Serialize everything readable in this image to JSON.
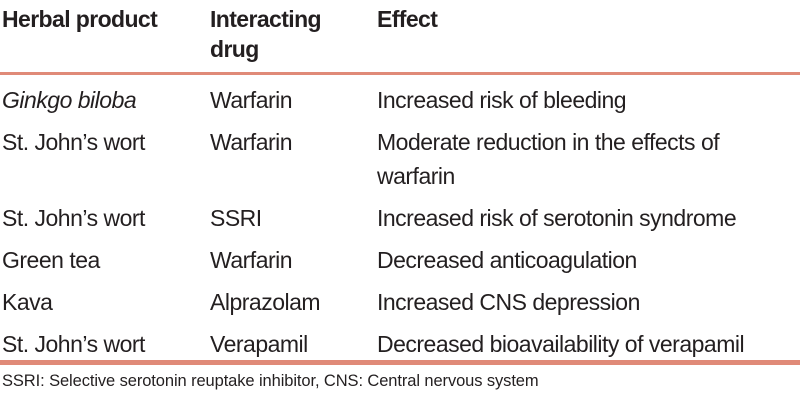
{
  "table": {
    "headers": {
      "herbal_product": "Herbal product",
      "interacting_drug_line1": "Interacting",
      "interacting_drug_line2": "drug",
      "effect": "Effect"
    },
    "rows": [
      {
        "herbal_product": "Ginkgo biloba",
        "interacting_drug": "Warfarin",
        "effect": "Increased risk of bleeding"
      },
      {
        "herbal_product": "St. John’s wort",
        "interacting_drug": "Warfarin",
        "effect": "Moderate reduction in the effects of warfarin"
      },
      {
        "herbal_product": "St. John’s wort",
        "interacting_drug": "SSRI",
        "effect": "Increased risk of serotonin syndrome"
      },
      {
        "herbal_product": "Green tea",
        "interacting_drug": "Warfarin",
        "effect": "Decreased anticoagulation"
      },
      {
        "herbal_product": "Kava",
        "interacting_drug": "Alprazolam",
        "effect": "Increased CNS depression"
      },
      {
        "herbal_product": "St. John’s wort",
        "interacting_drug": "Verapamil",
        "effect": "Decreased bioavailability of verapamil"
      }
    ]
  },
  "footnote": "SSRI: Selective serotonin reuptake inhibitor, CNS: Central nervous system",
  "colors": {
    "rule": "#e08a78",
    "text": "#231f20"
  }
}
